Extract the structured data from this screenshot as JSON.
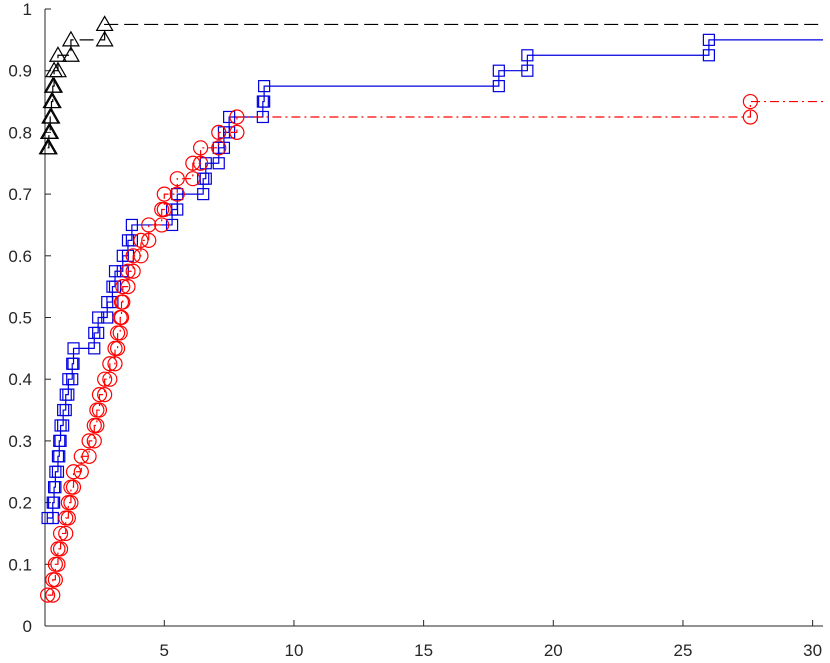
{
  "chart_data": {
    "type": "line",
    "title": "",
    "xlabel": "",
    "ylabel": "",
    "xlim": [
      0.4,
      30.4
    ],
    "ylim": [
      0,
      1
    ],
    "grid": false,
    "x_ticks": [
      5,
      10,
      15,
      20,
      25,
      30
    ],
    "x_tick_labels": [
      "5",
      "10",
      "15",
      "20",
      "25",
      "30"
    ],
    "y_ticks": [
      0,
      0.1,
      0.2,
      0.3,
      0.4,
      0.5,
      0.6,
      0.7,
      0.8,
      0.9,
      1
    ],
    "y_tick_labels": [
      "0",
      "0.1",
      "0.2",
      "0.3",
      "0.4",
      "0.5",
      "0.6",
      "0.7",
      "0.8",
      "0.9",
      "1"
    ],
    "series": [
      {
        "style": "stairs",
        "color": "#0000e0",
        "dash": "",
        "marker": "square",
        "x_end": 30.4,
        "points": [
          [
            0.5,
            0.175
          ],
          [
            0.7,
            0.2
          ],
          [
            0.75,
            0.225
          ],
          [
            0.8,
            0.25
          ],
          [
            0.9,
            0.275
          ],
          [
            0.95,
            0.3
          ],
          [
            1.0,
            0.325
          ],
          [
            1.1,
            0.35
          ],
          [
            1.2,
            0.375
          ],
          [
            1.3,
            0.4
          ],
          [
            1.45,
            0.425
          ],
          [
            1.5,
            0.45
          ],
          [
            2.3,
            0.475
          ],
          [
            2.45,
            0.5
          ],
          [
            2.8,
            0.525
          ],
          [
            3.0,
            0.55
          ],
          [
            3.1,
            0.575
          ],
          [
            3.4,
            0.6
          ],
          [
            3.6,
            0.625
          ],
          [
            3.75,
            0.65
          ],
          [
            5.3,
            0.675
          ],
          [
            5.5,
            0.7
          ],
          [
            6.5,
            0.725
          ],
          [
            6.6,
            0.75
          ],
          [
            7.1,
            0.775
          ],
          [
            7.3,
            0.8
          ],
          [
            7.5,
            0.825
          ],
          [
            8.8,
            0.85
          ],
          [
            8.85,
            0.875
          ],
          [
            17.9,
            0.9
          ],
          [
            19.0,
            0.925
          ],
          [
            26.0,
            0.95
          ]
        ]
      },
      {
        "style": "stairs",
        "color": "#ff0000",
        "dash": "9 4 2 4",
        "marker": "circle",
        "x_end": 30.4,
        "points": [
          [
            0.5,
            0.05
          ],
          [
            0.7,
            0.075
          ],
          [
            0.8,
            0.1
          ],
          [
            0.9,
            0.125
          ],
          [
            1.0,
            0.15
          ],
          [
            1.2,
            0.175
          ],
          [
            1.3,
            0.2
          ],
          [
            1.4,
            0.225
          ],
          [
            1.5,
            0.25
          ],
          [
            1.8,
            0.275
          ],
          [
            2.1,
            0.3
          ],
          [
            2.3,
            0.325
          ],
          [
            2.4,
            0.35
          ],
          [
            2.5,
            0.375
          ],
          [
            2.7,
            0.4
          ],
          [
            2.9,
            0.425
          ],
          [
            3.1,
            0.45
          ],
          [
            3.2,
            0.475
          ],
          [
            3.3,
            0.5
          ],
          [
            3.35,
            0.525
          ],
          [
            3.4,
            0.55
          ],
          [
            3.6,
            0.575
          ],
          [
            3.8,
            0.6
          ],
          [
            4.1,
            0.625
          ],
          [
            4.4,
            0.65
          ],
          [
            4.9,
            0.675
          ],
          [
            5.0,
            0.7
          ],
          [
            5.5,
            0.725
          ],
          [
            6.1,
            0.75
          ],
          [
            6.4,
            0.775
          ],
          [
            7.1,
            0.8
          ],
          [
            7.8,
            0.825
          ],
          [
            27.6,
            0.85
          ]
        ]
      },
      {
        "style": "stairs",
        "color": "#000000",
        "dash": "14 6",
        "marker": "triangle",
        "x_end": 30.4,
        "points": [
          [
            0.5,
            0.775
          ],
          [
            0.55,
            0.8
          ],
          [
            0.6,
            0.825
          ],
          [
            0.65,
            0.85
          ],
          [
            0.7,
            0.875
          ],
          [
            0.75,
            0.9
          ],
          [
            0.9,
            0.925
          ],
          [
            1.4,
            0.95
          ],
          [
            2.7,
            0.975
          ]
        ]
      }
    ]
  }
}
